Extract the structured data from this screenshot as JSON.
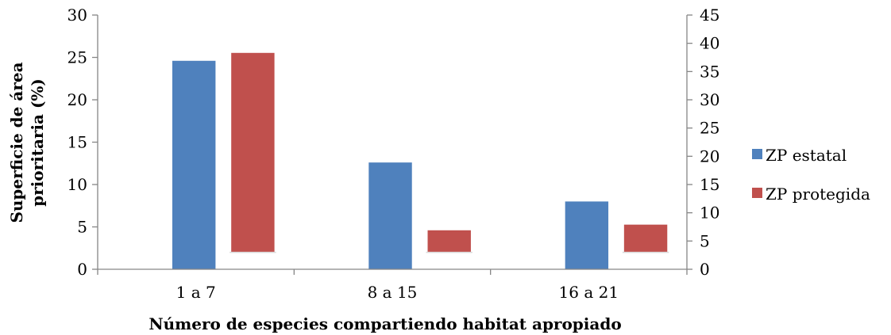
{
  "chart_data": {
    "type": "bar",
    "title": "",
    "categories": [
      "1 a 7",
      "8 a 15",
      "16 a 21"
    ],
    "xlabel": "Número de especies compartiendo habitat apropiado",
    "ylabel_lines": [
      "Superficie de área",
      "prioritaria (%)"
    ],
    "ylim": [
      0,
      30
    ],
    "y_ticks": [
      "0",
      "5",
      "10",
      "15",
      "20",
      "25",
      "30"
    ],
    "y2lim": [
      0,
      45
    ],
    "y2_ticks": [
      "0",
      "5",
      "10",
      "15",
      "20",
      "25",
      "30",
      "35",
      "40",
      "45"
    ],
    "grid": false,
    "legend_position": "right",
    "series": [
      {
        "name": "ZP estatal",
        "axis": "left",
        "color": "#4f81bd",
        "values": [
          24.6,
          12.6,
          8.0
        ],
        "bottom": 0
      },
      {
        "name": "ZP protegida",
        "axis": "right",
        "color": "#c0504d",
        "values": [
          38.3,
          6.9,
          7.9
        ],
        "bottom": 3
      }
    ]
  }
}
